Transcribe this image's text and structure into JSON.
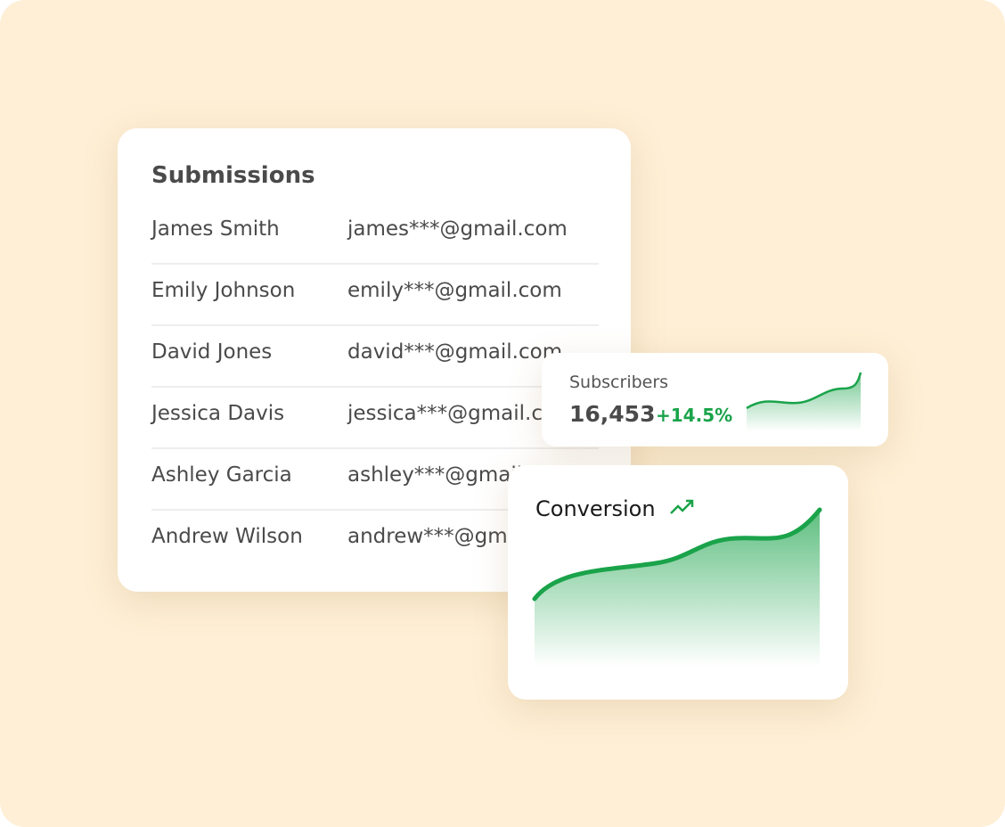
{
  "submissions": {
    "title": "Submissions",
    "rows": [
      {
        "name": "James Smith",
        "email": "james***@gmail.com"
      },
      {
        "name": "Emily Johnson",
        "email": "emily***@gmail.com"
      },
      {
        "name": "David Jones",
        "email": "david***@gmail.com"
      },
      {
        "name": "Jessica Davis",
        "email": "jessica***@gmail.com"
      },
      {
        "name": "Ashley Garcia",
        "email": "ashley***@gmail.com"
      },
      {
        "name": "Andrew Wilson",
        "email": "andrew***@gmail.com"
      }
    ]
  },
  "subscribers": {
    "label": "Subscribers",
    "value": "16,453",
    "change": "+14.5%"
  },
  "conversion": {
    "title": "Conversion",
    "icon": "trending-up-icon"
  },
  "colors": {
    "background": "#feefd6",
    "accent": "#1aa34a"
  }
}
